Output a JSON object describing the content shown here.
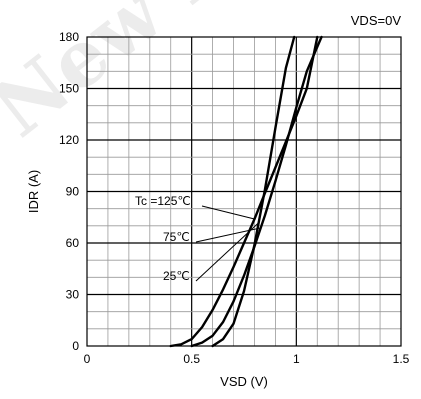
{
  "chart_data": {
    "type": "line",
    "title": "",
    "condition": "VDS=0V",
    "xlabel": "VSD (V)",
    "ylabel": "IDR (A)",
    "xlim": [
      0,
      1.5
    ],
    "ylim": [
      0,
      180
    ],
    "xticks": [
      "0",
      "0.5",
      "1",
      "1.5"
    ],
    "yticks": [
      "0",
      "30",
      "60",
      "90",
      "120",
      "150",
      "180"
    ],
    "grid": true,
    "watermark": "New Des",
    "series": [
      {
        "name": "Tc =125℃",
        "x": [
          0.4,
          0.45,
          0.5,
          0.55,
          0.6,
          0.65,
          0.7,
          0.75,
          0.8,
          0.85,
          0.9,
          0.95,
          1.0,
          1.05,
          1.1
        ],
        "y": [
          0,
          1,
          4,
          11,
          21,
          33,
          46,
          60,
          74,
          89,
          104,
          119,
          134,
          150,
          180
        ]
      },
      {
        "name": "75℃",
        "x": [
          0.5,
          0.55,
          0.6,
          0.65,
          0.7,
          0.75,
          0.8,
          0.85,
          0.9,
          0.95,
          1.0,
          1.05,
          1.12
        ],
        "y": [
          0,
          2,
          6,
          14,
          26,
          41,
          58,
          76,
          96,
          117,
          139,
          160,
          180
        ]
      },
      {
        "name": "25℃",
        "x": [
          0.6,
          0.65,
          0.7,
          0.75,
          0.8,
          0.85,
          0.9,
          0.95,
          0.99
        ],
        "y": [
          0,
          4,
          13,
          32,
          59,
          91,
          127,
          162,
          180
        ]
      }
    ]
  }
}
